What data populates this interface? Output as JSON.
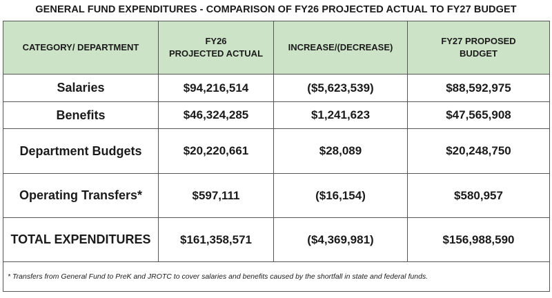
{
  "title": "GENERAL FUND EXPENDITURES - COMPARISON OF FY26 PROJECTED ACTUAL TO FY27 BUDGET",
  "header_color": "#cde3c8",
  "columns": [
    {
      "line1": "CATEGORY/ DEPARTMENT",
      "line2": ""
    },
    {
      "line1": "FY26",
      "line2": "PROJECTED ACTUAL"
    },
    {
      "line1": "INCREASE/(DECREASE)",
      "line2": ""
    },
    {
      "line1": "FY27 PROPOSED",
      "line2": "BUDGET"
    }
  ],
  "rows": [
    {
      "category": "Salaries",
      "fy26": "$94,216,514",
      "change": "($5,623,539)",
      "fy27": "$88,592,975"
    },
    {
      "category": "Benefits",
      "fy26": "$46,324,285",
      "change": "$1,241,623",
      "fy27": "$47,565,908"
    },
    {
      "category": "Department Budgets",
      "fy26": "$20,220,661",
      "change": "$28,089",
      "fy27": "$20,248,750"
    },
    {
      "category": "Operating Transfers*",
      "fy26": "$597,111",
      "change": "($16,154)",
      "fy27": "$580,957"
    },
    {
      "category": "TOTAL EXPENDITURES",
      "fy26": "$161,358,571",
      "change": "($4,369,981)",
      "fy27": "$156,988,590"
    }
  ],
  "footnote": "*  Transfers from General Fund to PreK and JROTC to cover salaries and benefits caused by the shortfall in state and federal funds."
}
